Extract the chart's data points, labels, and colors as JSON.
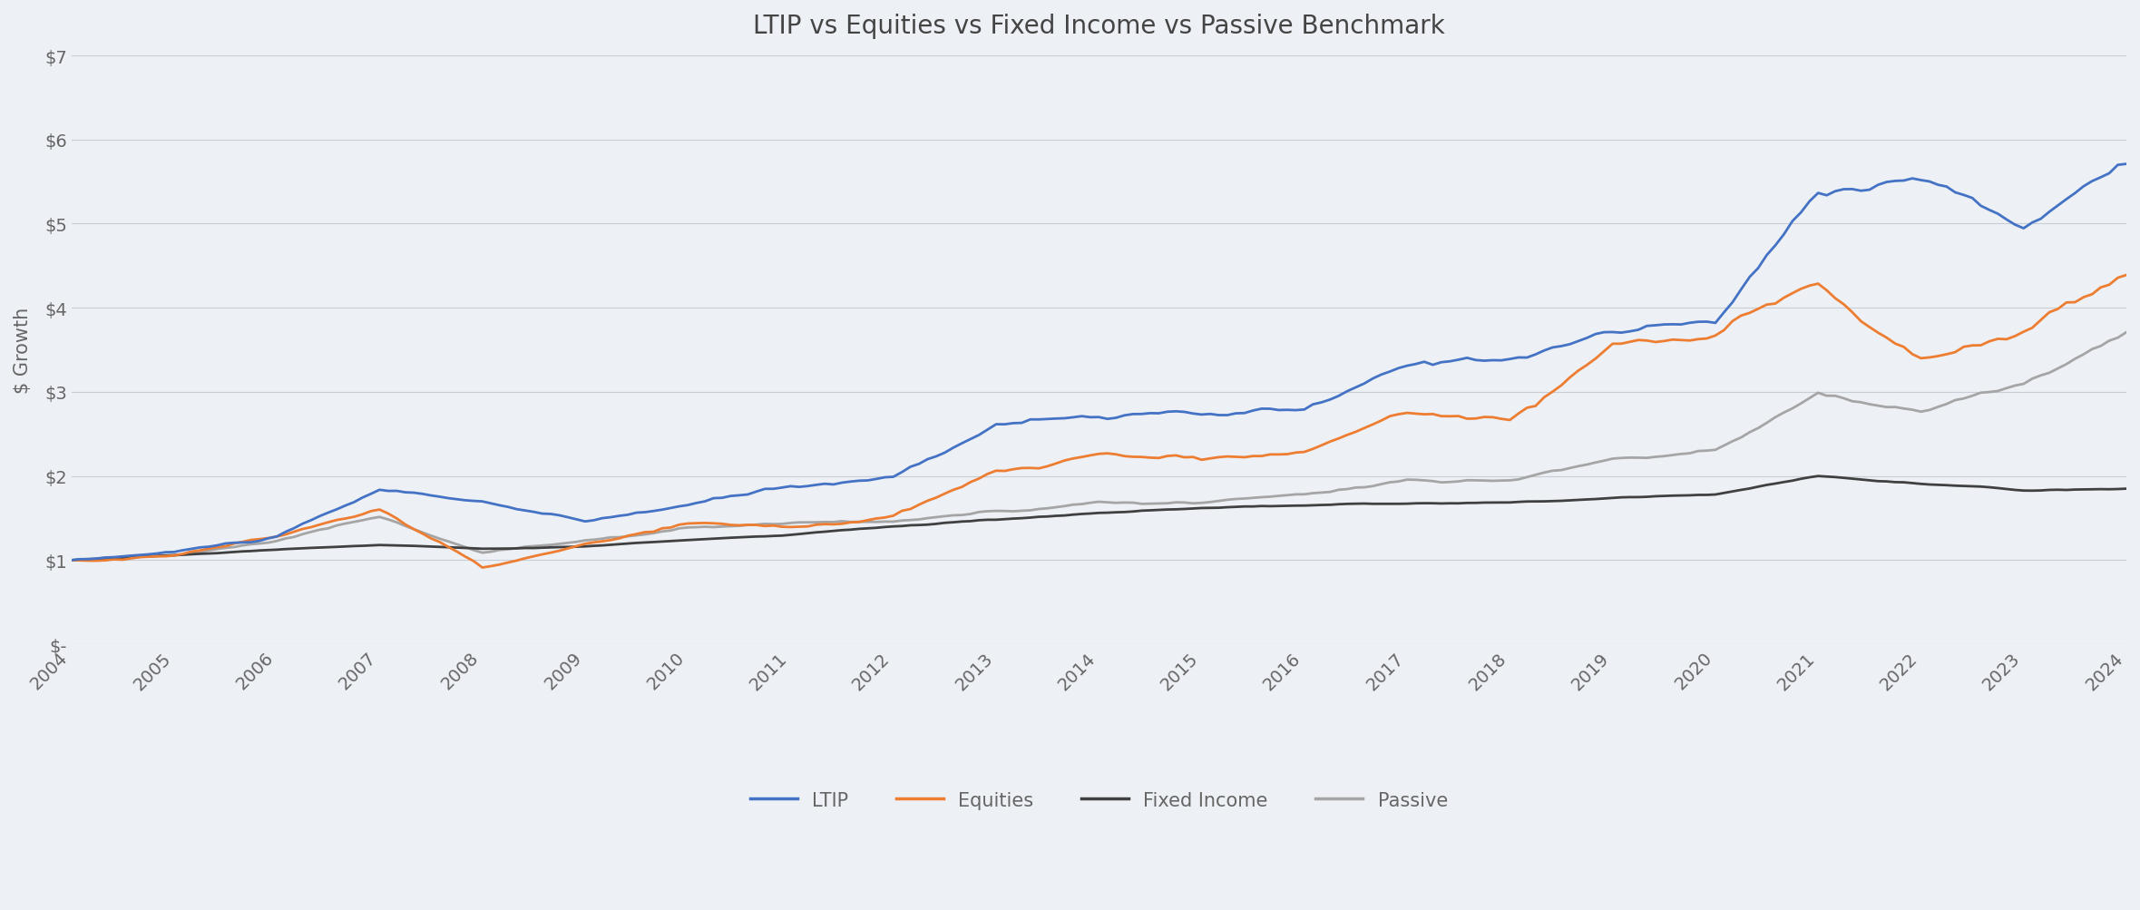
{
  "title": "LTIP vs Equities vs Fixed Income vs Passive Benchmark",
  "ylabel": "$ Growth",
  "background_color": "#edf0f5",
  "plot_bg_color": "#edf0f5",
  "grid_color": "#c8cdd6",
  "title_color": "#444444",
  "axis_label_color": "#666666",
  "tick_label_color": "#666666",
  "ylim": [
    0,
    7
  ],
  "yticks": [
    0,
    1,
    2,
    3,
    4,
    5,
    6,
    7
  ],
  "ytick_labels": [
    "$-",
    "$1",
    "$2",
    "$3",
    "$4",
    "$5",
    "$6",
    "$7"
  ],
  "years": [
    2004,
    2005,
    2006,
    2007,
    2008,
    2009,
    2010,
    2011,
    2012,
    2013,
    2014,
    2015,
    2016,
    2017,
    2018,
    2019,
    2020,
    2021,
    2022,
    2023,
    2024
  ],
  "LTIP": [
    1.0,
    1.1,
    1.28,
    1.8,
    1.68,
    1.42,
    1.62,
    1.82,
    1.95,
    2.6,
    2.72,
    2.68,
    2.72,
    3.18,
    3.32,
    3.65,
    3.72,
    5.22,
    5.5,
    4.88,
    5.71
  ],
  "Equities": [
    1.0,
    1.08,
    1.3,
    1.65,
    0.92,
    1.18,
    1.4,
    1.35,
    1.48,
    1.95,
    2.15,
    2.1,
    2.2,
    2.65,
    2.6,
    3.52,
    3.58,
    4.2,
    3.35,
    3.72,
    4.39
  ],
  "Fixed Income": [
    1.0,
    1.06,
    1.12,
    1.18,
    1.15,
    1.18,
    1.25,
    1.32,
    1.42,
    1.5,
    1.58,
    1.62,
    1.64,
    1.66,
    1.66,
    1.72,
    1.78,
    2.0,
    1.9,
    1.82,
    1.85
  ],
  "Passive": [
    1.0,
    1.06,
    1.22,
    1.48,
    1.08,
    1.22,
    1.38,
    1.42,
    1.5,
    1.62,
    1.72,
    1.72,
    1.82,
    2.0,
    2.0,
    2.28,
    2.38,
    3.05,
    2.8,
    3.12,
    3.71
  ],
  "series_names": [
    "LTIP",
    "Equities",
    "Fixed Income",
    "Passive"
  ],
  "series_colors": [
    "#4472C4",
    "#ED7D31",
    "#404040",
    "#A5A5A5"
  ],
  "linewidth": 2.0,
  "title_fontsize": 20,
  "axis_label_fontsize": 15,
  "tick_fontsize": 14,
  "legend_fontsize": 15
}
